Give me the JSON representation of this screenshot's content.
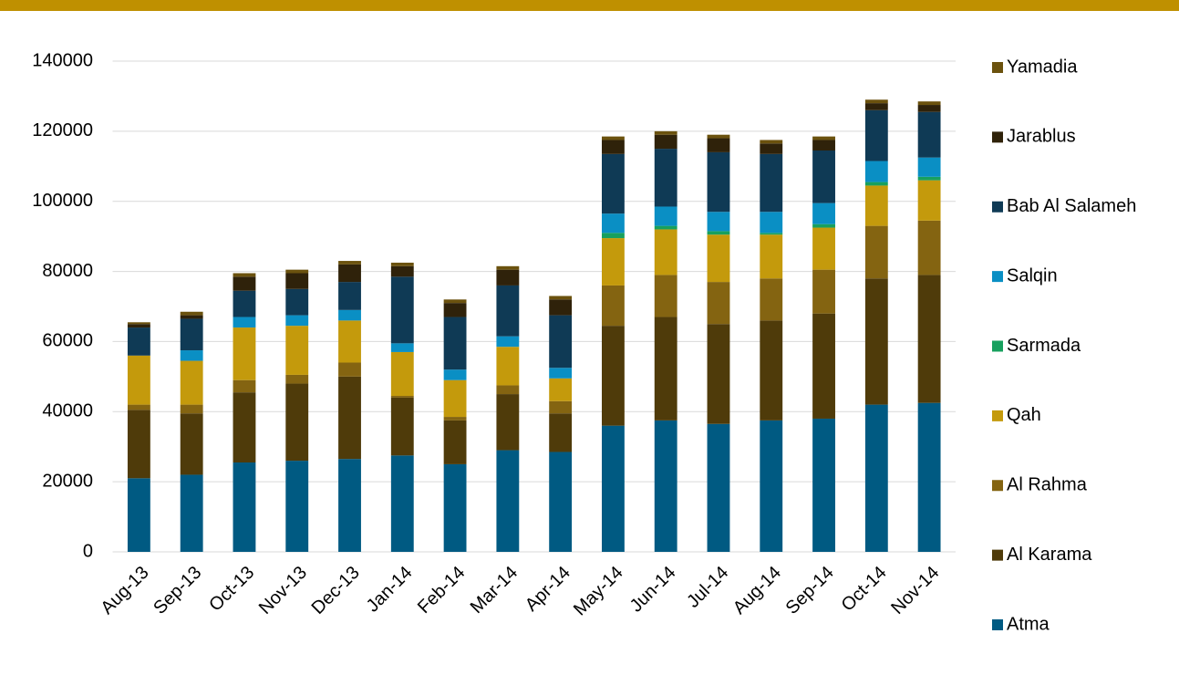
{
  "chart_data": {
    "type": "stacked_bar",
    "categories": [
      "Aug-13",
      "Sep-13",
      "Oct-13",
      "Nov-13",
      "Dec-13",
      "Jan-14",
      "Feb-14",
      "Mar-14",
      "Apr-14",
      "May-14",
      "Jun-14",
      "Jul-14",
      "Aug-14",
      "Sep-14",
      "Oct-14",
      "Nov-14"
    ],
    "series": [
      {
        "name": "Atma",
        "color": "#005a82",
        "values": [
          21000,
          22000,
          25500,
          26000,
          26500,
          27500,
          25000,
          29000,
          28500,
          36000,
          37500,
          36500,
          37500,
          38000,
          42000,
          42500
        ]
      },
      {
        "name": "Al Karama",
        "color": "#4f3b0a",
        "values": [
          19500,
          17500,
          20000,
          22000,
          23500,
          16500,
          12500,
          16000,
          11000,
          28500,
          29500,
          28500,
          28500,
          30000,
          36000,
          36500
        ]
      },
      {
        "name": "Al Rahma",
        "color": "#846411",
        "values": [
          1500,
          2500,
          3500,
          2500,
          4000,
          500,
          1000,
          2500,
          3500,
          11500,
          12000,
          12000,
          12000,
          12500,
          15000,
          15500
        ]
      },
      {
        "name": "Qah",
        "color": "#c49a0c",
        "values": [
          14000,
          12500,
          15000,
          14000,
          12000,
          12500,
          10500,
          11000,
          6500,
          13500,
          13000,
          13500,
          12500,
          12000,
          11500,
          11500
        ]
      },
      {
        "name": "Sarmada",
        "color": "#17a05e",
        "values": [
          0,
          0,
          0,
          0,
          0,
          0,
          0,
          0,
          0,
          1500,
          1000,
          1000,
          500,
          1000,
          1000,
          1000
        ]
      },
      {
        "name": "Salqin",
        "color": "#0a8fc4",
        "values": [
          0,
          3000,
          3000,
          3000,
          3000,
          2500,
          3000,
          3000,
          3000,
          5500,
          5500,
          5500,
          6000,
          6000,
          6000,
          5500
        ]
      },
      {
        "name": "Bab Al Salameh",
        "color": "#0f3a55",
        "values": [
          8000,
          9000,
          7500,
          7500,
          8000,
          19000,
          15000,
          14500,
          15000,
          17000,
          16500,
          17000,
          16500,
          15000,
          14500,
          13000
        ]
      },
      {
        "name": "Jarablus",
        "color": "#2f220a",
        "values": [
          1000,
          1000,
          4000,
          4500,
          5000,
          3000,
          4000,
          4500,
          4500,
          4000,
          4000,
          4000,
          3000,
          3000,
          2000,
          2000
        ]
      },
      {
        "name": "Yamadia",
        "color": "#6b520e",
        "values": [
          500,
          1000,
          1000,
          1000,
          1000,
          1000,
          1000,
          1000,
          1000,
          1000,
          1000,
          1000,
          1000,
          1000,
          1000,
          1000
        ]
      }
    ],
    "ylim": [
      0,
      140000
    ],
    "yticks": [
      0,
      20000,
      40000,
      60000,
      80000,
      100000,
      120000,
      140000
    ],
    "grid": true,
    "legend": "right"
  }
}
